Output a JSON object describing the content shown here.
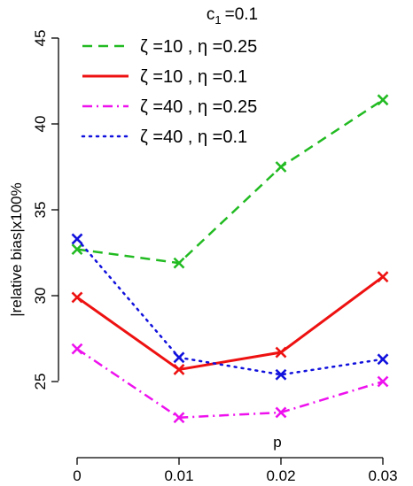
{
  "chart_data": {
    "type": "line",
    "title": "c",
    "title_subscript": "1",
    "title_suffix": "=0.1",
    "xlabel": "p",
    "ylabel": "|relative bias|x100%",
    "x": [
      0,
      0.01,
      0.02,
      0.03
    ],
    "x_tick_labels": [
      "0",
      "0.01",
      "0.02",
      "0.03"
    ],
    "y_ticks": [
      25,
      30,
      35,
      40,
      45
    ],
    "y_tick_labels": [
      "25",
      "30",
      "35",
      "40",
      "45"
    ],
    "xlim": [
      0,
      0.03
    ],
    "ylim": [
      22.4,
      45
    ],
    "grid": false,
    "legend_position": "top-left",
    "marker": "x",
    "series": [
      {
        "name": "ζ =10 , η =0.25",
        "values": [
          32.7,
          31.9,
          37.5,
          41.4
        ],
        "color": "#22bb22",
        "dash": "dashed"
      },
      {
        "name": "ζ =10 , η =0.1",
        "values": [
          29.9,
          25.7,
          26.7,
          31.1
        ],
        "color": "#ee1111",
        "dash": "solid"
      },
      {
        "name": "ζ =40 , η =0.25",
        "values": [
          26.9,
          22.9,
          23.2,
          25.0
        ],
        "color": "#ee11ee",
        "dash": "dashdot"
      },
      {
        "name": "ζ =40 , η =0.1",
        "values": [
          33.3,
          26.4,
          25.4,
          26.3
        ],
        "color": "#1111dd",
        "dash": "dotted"
      }
    ]
  }
}
